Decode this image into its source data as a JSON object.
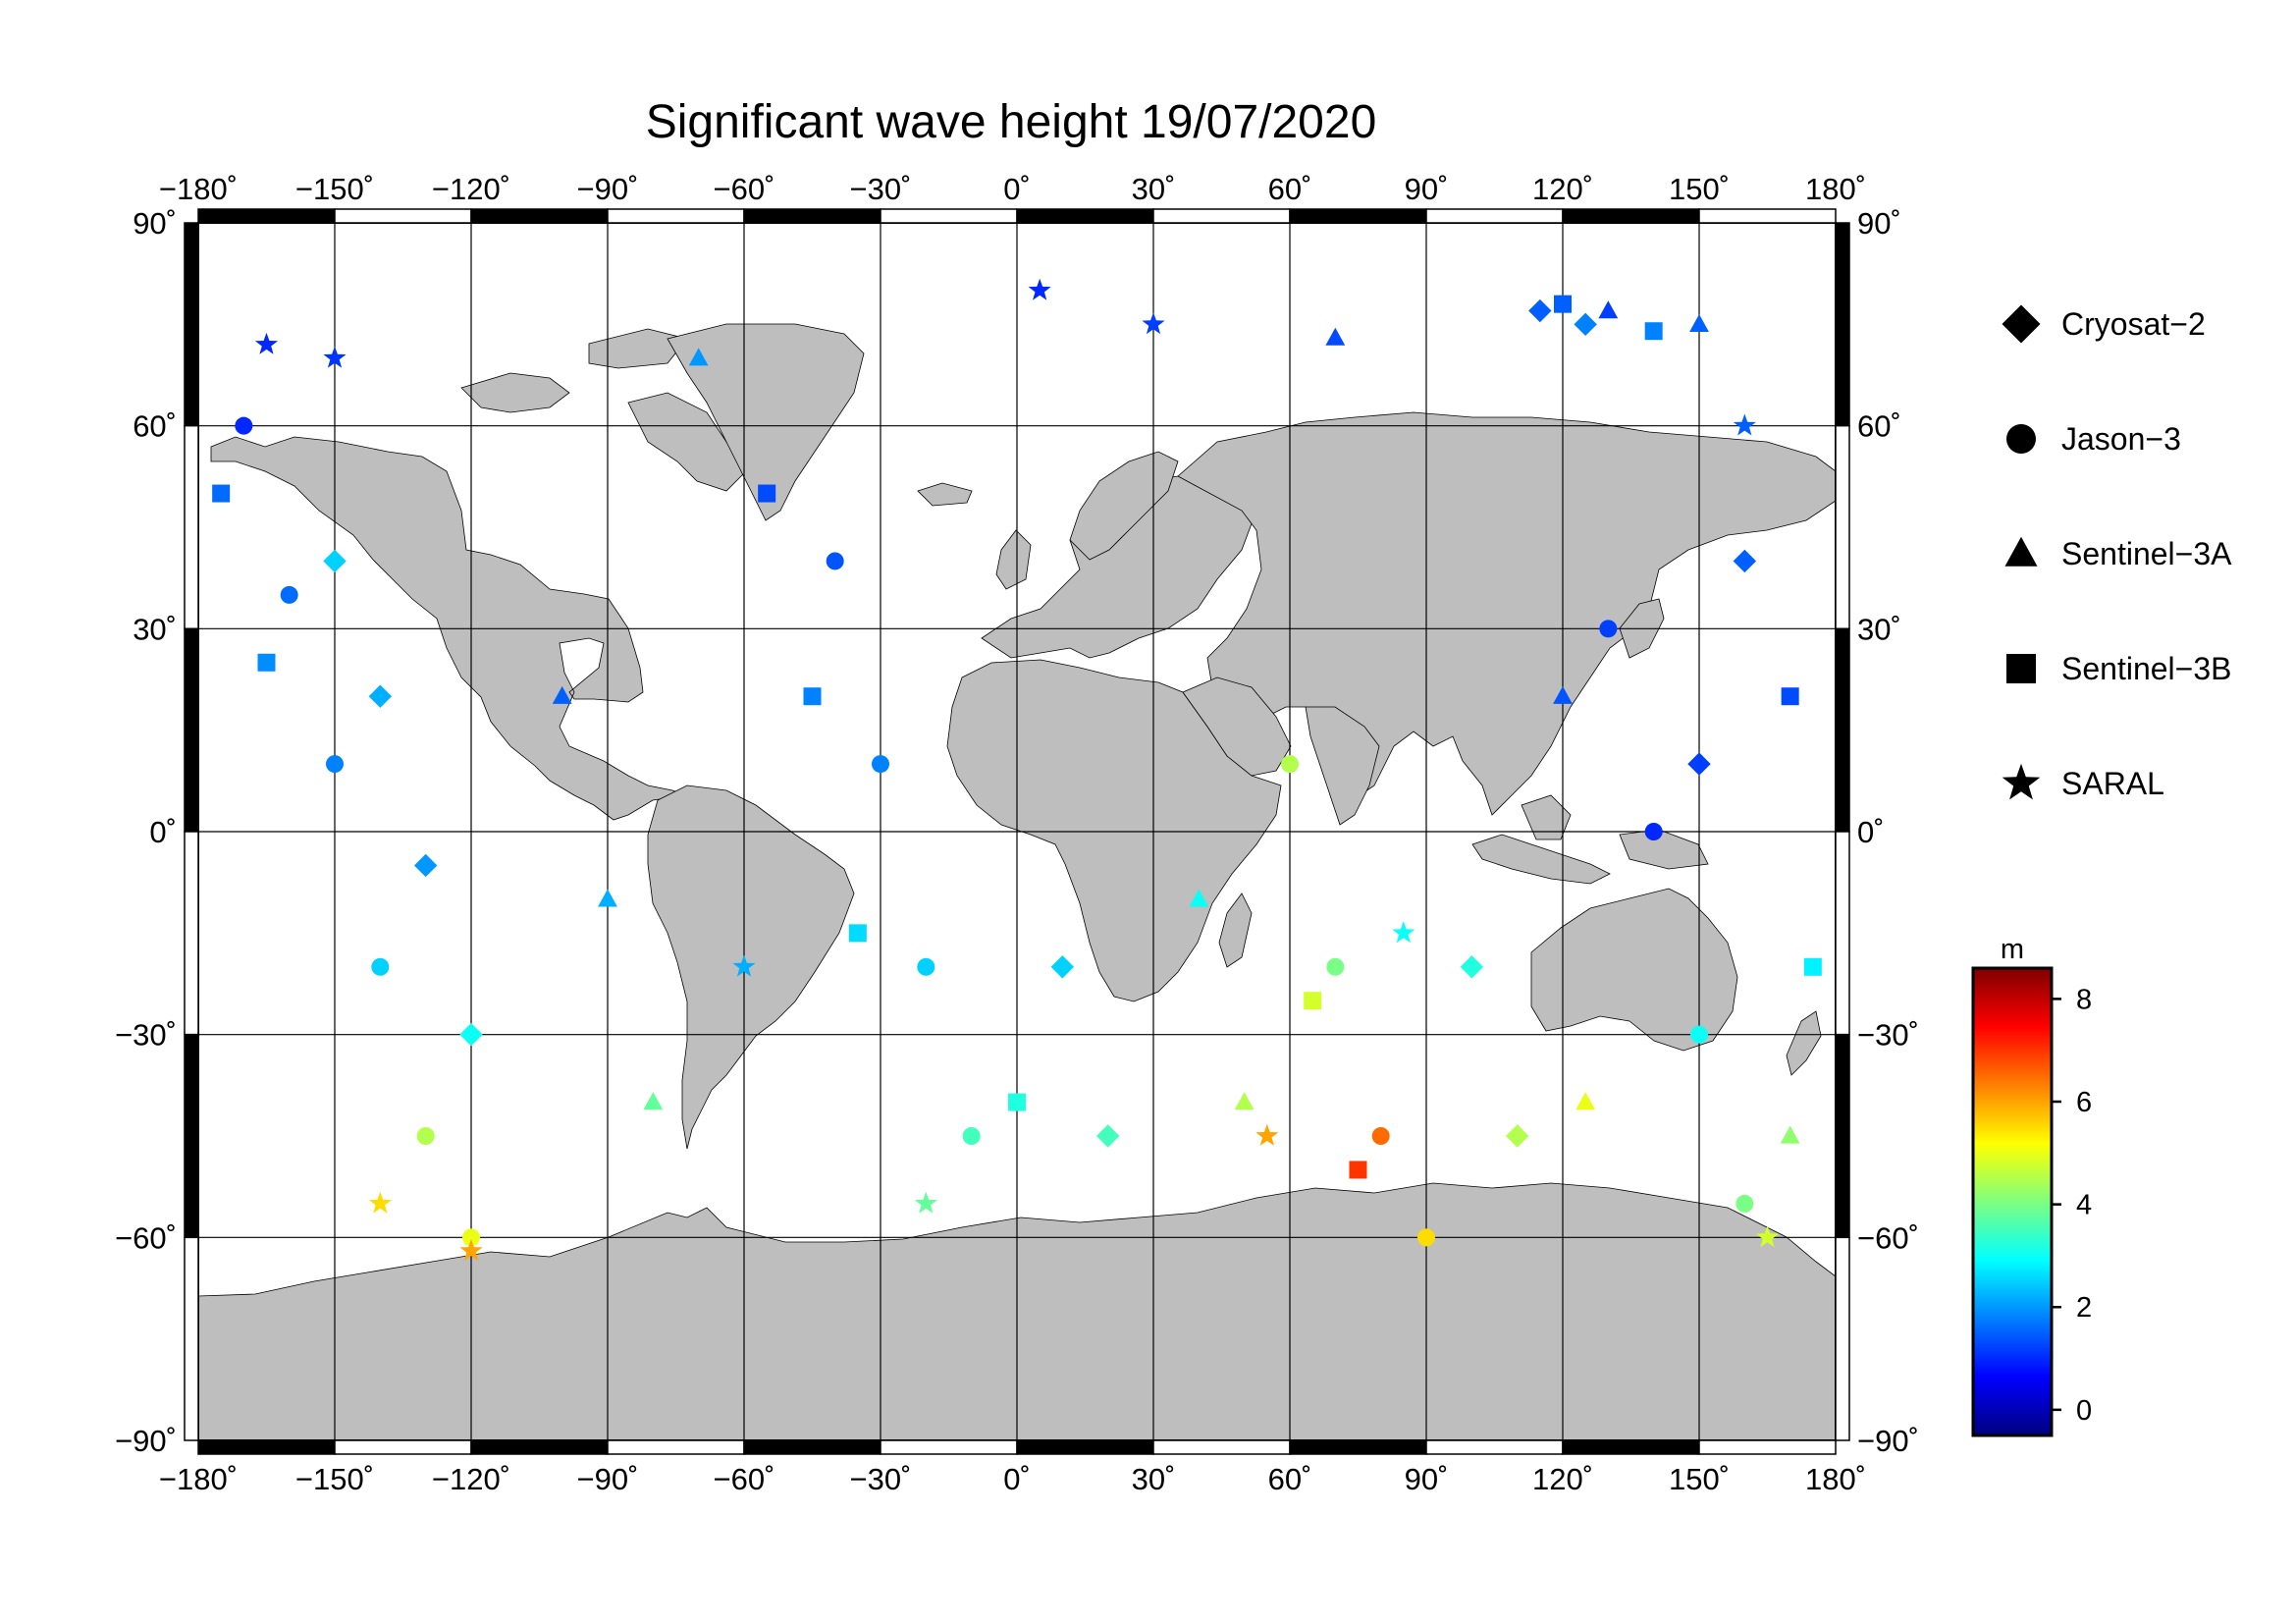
{
  "title": "Significant wave height 19/07/2020",
  "lon_axis": {
    "min": -180,
    "max": 180,
    "ticks": [
      -180,
      -150,
      -120,
      -90,
      -60,
      -30,
      0,
      30,
      60,
      90,
      120,
      150,
      180
    ],
    "labels": [
      "−180˚",
      "−150˚",
      "−120˚",
      "−90˚",
      "−60˚",
      "−30˚",
      "0˚",
      "30˚",
      "60˚",
      "90˚",
      "120˚",
      "150˚",
      "180˚"
    ]
  },
  "lat_axis": {
    "min": -90,
    "max": 90,
    "ticks": [
      90,
      60,
      30,
      0,
      -30,
      -60,
      -90
    ],
    "labels": [
      "90˚",
      "60˚",
      "30˚",
      "0˚",
      "−30˚",
      "−60˚",
      "−90˚"
    ]
  },
  "legend": [
    {
      "label": "Cryosat−2",
      "symbol": "diamond"
    },
    {
      "label": "Jason−3",
      "symbol": "circle"
    },
    {
      "label": "Sentinel−3A",
      "symbol": "triangle"
    },
    {
      "label": "Sentinel−3B",
      "symbol": "square"
    },
    {
      "label": "SARAL",
      "symbol": "star"
    }
  ],
  "colorbar": {
    "unit": "m",
    "min": -0.5,
    "max": 8.6,
    "ticks": [
      0,
      2,
      4,
      6,
      8
    ],
    "tick_labels": [
      "0",
      "2",
      "4",
      "6",
      "8"
    ],
    "colors": [
      "#00007f",
      "#0000ff",
      "#007fff",
      "#00ffff",
      "#7fff7f",
      "#ffff00",
      "#ff7f00",
      "#ff0000",
      "#7f0000"
    ]
  },
  "colors": {
    "land": "#bebebe",
    "ocean": "#ffffff",
    "frame": "#000000",
    "grid": "#000000"
  },
  "chart_data": {
    "type": "scatter",
    "title": "Significant wave height 19/07/2020",
    "xlabel": "",
    "ylabel": "",
    "xlim": [
      -180,
      180
    ],
    "ylim": [
      -90,
      90
    ],
    "grid": true,
    "legend_position": "right",
    "color_scale": {
      "label": "m",
      "range": [
        -0.5,
        8.6
      ]
    },
    "series": [
      {
        "name": "Cryosat−2",
        "marker": "diamond",
        "points": [
          {
            "lon": 115,
            "lat": 77,
            "swh": 1.5
          },
          {
            "lon": 125,
            "lat": 75,
            "swh": 1.8
          },
          {
            "lon": -150,
            "lat": 40,
            "swh": 2.5
          },
          {
            "lon": -140,
            "lat": 20,
            "swh": 2.2
          },
          {
            "lon": -130,
            "lat": -5,
            "swh": 2.0
          },
          {
            "lon": -120,
            "lat": -30,
            "swh": 3.0
          },
          {
            "lon": 10,
            "lat": -20,
            "swh": 2.5
          },
          {
            "lon": 20,
            "lat": -45,
            "swh": 3.5
          },
          {
            "lon": 100,
            "lat": -20,
            "swh": 3.2
          },
          {
            "lon": 110,
            "lat": -45,
            "swh": 4.5
          },
          {
            "lon": 150,
            "lat": 10,
            "swh": 1.2
          },
          {
            "lon": 160,
            "lat": 40,
            "swh": 1.5
          }
        ]
      },
      {
        "name": "Jason−3",
        "marker": "circle",
        "points": [
          {
            "lon": -170,
            "lat": 60,
            "swh": 1.0
          },
          {
            "lon": -160,
            "lat": 35,
            "swh": 1.6
          },
          {
            "lon": -150,
            "lat": 10,
            "swh": 1.8
          },
          {
            "lon": -140,
            "lat": -20,
            "swh": 2.5
          },
          {
            "lon": -130,
            "lat": -45,
            "swh": 4.5
          },
          {
            "lon": -120,
            "lat": -60,
            "swh": 5.0
          },
          {
            "lon": -40,
            "lat": 40,
            "swh": 1.4
          },
          {
            "lon": -30,
            "lat": 10,
            "swh": 1.8
          },
          {
            "lon": -20,
            "lat": -20,
            "swh": 2.5
          },
          {
            "lon": -10,
            "lat": -45,
            "swh": 3.5
          },
          {
            "lon": 60,
            "lat": 10,
            "swh": 4.5
          },
          {
            "lon": 70,
            "lat": -20,
            "swh": 4.0
          },
          {
            "lon": 80,
            "lat": -45,
            "swh": 6.5
          },
          {
            "lon": 90,
            "lat": -60,
            "swh": 5.5
          },
          {
            "lon": 130,
            "lat": 30,
            "swh": 1.2
          },
          {
            "lon": 140,
            "lat": 0,
            "swh": 1.0
          },
          {
            "lon": 150,
            "lat": -30,
            "swh": 3.0
          },
          {
            "lon": 160,
            "lat": -55,
            "swh": 4.0
          }
        ]
      },
      {
        "name": "Sentinel−3A",
        "marker": "triangle",
        "points": [
          {
            "lon": 130,
            "lat": 77,
            "swh": 1.2
          },
          {
            "lon": 150,
            "lat": 75,
            "swh": 1.5
          },
          {
            "lon": 70,
            "lat": 73,
            "swh": 1.3
          },
          {
            "lon": -70,
            "lat": 70,
            "swh": 2.0
          },
          {
            "lon": -100,
            "lat": 20,
            "swh": 1.5
          },
          {
            "lon": -90,
            "lat": -10,
            "swh": 2.2
          },
          {
            "lon": -80,
            "lat": -40,
            "swh": 3.8
          },
          {
            "lon": 40,
            "lat": -10,
            "swh": 3.0
          },
          {
            "lon": 50,
            "lat": -40,
            "swh": 4.5
          },
          {
            "lon": 120,
            "lat": 20,
            "swh": 1.4
          },
          {
            "lon": 125,
            "lat": -40,
            "swh": 5.0
          },
          {
            "lon": 170,
            "lat": -45,
            "swh": 4.2
          }
        ]
      },
      {
        "name": "Sentinel−3B",
        "marker": "square",
        "points": [
          {
            "lon": 120,
            "lat": 78,
            "swh": 1.5
          },
          {
            "lon": 140,
            "lat": 74,
            "swh": 1.8
          },
          {
            "lon": -175,
            "lat": 50,
            "swh": 1.6
          },
          {
            "lon": -165,
            "lat": 25,
            "swh": 1.9
          },
          {
            "lon": -55,
            "lat": 50,
            "swh": 1.3
          },
          {
            "lon": -45,
            "lat": 20,
            "swh": 1.8
          },
          {
            "lon": -35,
            "lat": -15,
            "swh": 2.6
          },
          {
            "lon": 0,
            "lat": -40,
            "swh": 3.2
          },
          {
            "lon": 65,
            "lat": -25,
            "swh": 4.8
          },
          {
            "lon": 75,
            "lat": -50,
            "swh": 7.0
          },
          {
            "lon": 170,
            "lat": 20,
            "swh": 1.3
          },
          {
            "lon": 175,
            "lat": -20,
            "swh": 2.8
          }
        ]
      },
      {
        "name": "SARAL",
        "marker": "star",
        "points": [
          {
            "lon": 5,
            "lat": 80,
            "swh": 1.0
          },
          {
            "lon": 30,
            "lat": 75,
            "swh": 1.2
          },
          {
            "lon": -165,
            "lat": 72,
            "swh": 1.0
          },
          {
            "lon": -150,
            "lat": 70,
            "swh": 1.1
          },
          {
            "lon": -120,
            "lat": -62,
            "swh": 6.0
          },
          {
            "lon": -140,
            "lat": -55,
            "swh": 5.5
          },
          {
            "lon": -20,
            "lat": -55,
            "swh": 3.8
          },
          {
            "lon": -60,
            "lat": -20,
            "swh": 2.2
          },
          {
            "lon": 55,
            "lat": -45,
            "swh": 6.0
          },
          {
            "lon": 85,
            "lat": -15,
            "swh": 3.0
          },
          {
            "lon": 160,
            "lat": 60,
            "swh": 1.5
          },
          {
            "lon": 165,
            "lat": -60,
            "swh": 4.8
          }
        ]
      }
    ]
  }
}
